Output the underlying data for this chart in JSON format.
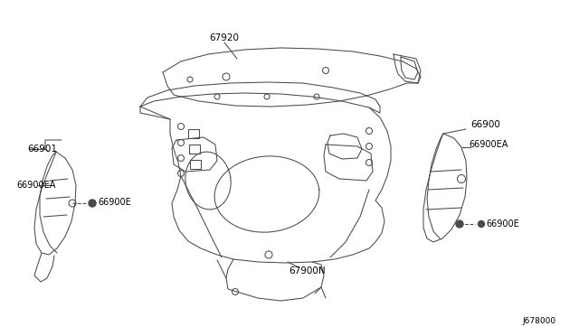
{
  "bg_color": "#ffffff",
  "line_color": "#4a4a4a",
  "label_color": "#000000",
  "diagram_id": "J678000",
  "fonts": {
    "label_size": 7.5,
    "id_size": 6.5
  },
  "labels": {
    "main_panel": "67900N",
    "top_rail": "67920",
    "left_panel": "66901",
    "left_clip_label": "66900EA",
    "left_clip": "66900E",
    "right_panel": "66900",
    "right_clip_label": "66900EA",
    "right_clip": "66900E"
  }
}
